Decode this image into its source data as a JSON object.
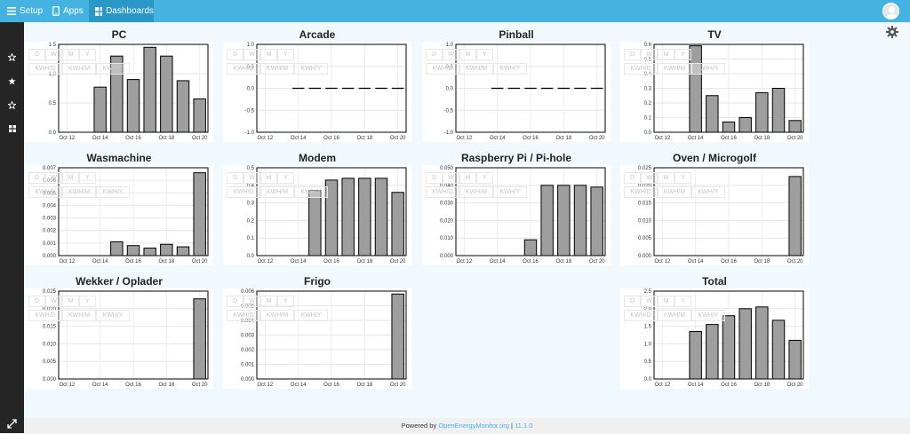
{
  "topbar": {
    "setup_label": "Setup",
    "apps_label": "Apps",
    "dashboards_label": "Dashboards"
  },
  "footer": {
    "powered_by": "Powered by",
    "link_text": "OpenEnergyMonitor.org",
    "separator": "|",
    "version": "11.1.0"
  },
  "overlay_buttons": {
    "row1": [
      "D",
      "W",
      "M",
      "Y"
    ],
    "row2": [
      "KWH/D",
      "KWH/M",
      "KWH/Y"
    ]
  },
  "colors": {
    "topbar": "#44b3e2",
    "topbar_active": "#2a98c6",
    "sidebar": "#252525",
    "bar_fill": "#9e9e9e"
  },
  "chart_data": [
    {
      "type": "bar",
      "title": "PC",
      "categories": [
        "Oct 12",
        "Oct 13",
        "Oct 14",
        "Oct 15",
        "Oct 16",
        "Oct 17",
        "Oct 18",
        "Oct 19",
        "Oct 20"
      ],
      "values": [
        0,
        0,
        0.77,
        1.3,
        0.9,
        1.45,
        1.3,
        0.88,
        0.57
      ],
      "ylim": [
        0,
        1.5
      ],
      "yticks": [
        "0.0",
        "0.5",
        "1.0",
        "1.5"
      ],
      "xticks": [
        "Oct 12",
        "Oct 14",
        "Oct 16",
        "Oct 18",
        "Oct 20"
      ]
    },
    {
      "type": "bar",
      "title": "Arcade",
      "categories": [
        "Oct 12",
        "Oct 13",
        "Oct 14",
        "Oct 15",
        "Oct 16",
        "Oct 17",
        "Oct 18",
        "Oct 19",
        "Oct 20"
      ],
      "values": [
        0,
        0,
        0,
        0,
        0,
        0,
        0,
        0,
        0
      ],
      "ylim": [
        -1,
        1
      ],
      "yticks": [
        "-1.0",
        "-0.5",
        "0.0",
        "0.5",
        "1.0"
      ],
      "xticks": [
        "Oct 12",
        "Oct 14",
        "Oct 16",
        "Oct 18",
        "Oct 20"
      ]
    },
    {
      "type": "bar",
      "title": "Pinball",
      "categories": [
        "Oct 12",
        "Oct 13",
        "Oct 14",
        "Oct 15",
        "Oct 16",
        "Oct 17",
        "Oct 18",
        "Oct 19",
        "Oct 20"
      ],
      "values": [
        0,
        0,
        0,
        0,
        0,
        0,
        0,
        0,
        0
      ],
      "ylim": [
        -1,
        1
      ],
      "yticks": [
        "-1.0",
        "-0.5",
        "0.0",
        "0.5",
        "1.0"
      ],
      "xticks": [
        "Oct 12",
        "Oct 14",
        "Oct 16",
        "Oct 18",
        "Oct 20"
      ]
    },
    {
      "type": "bar",
      "title": "TV",
      "categories": [
        "Oct 12",
        "Oct 13",
        "Oct 14",
        "Oct 15",
        "Oct 16",
        "Oct 17",
        "Oct 18",
        "Oct 19",
        "Oct 20"
      ],
      "values": [
        0,
        0,
        0.59,
        0.25,
        0.07,
        0.1,
        0.27,
        0.3,
        0.08
      ],
      "ylim": [
        0,
        0.6
      ],
      "yticks": [
        "0.0",
        "0.1",
        "0.2",
        "0.3",
        "0.4",
        "0.5",
        "0.6"
      ],
      "xticks": [
        "Oct 12",
        "Oct 14",
        "Oct 16",
        "Oct 18",
        "Oct 20"
      ]
    },
    {
      "type": "bar",
      "title": "Wasmachine",
      "categories": [
        "Oct 12",
        "Oct 13",
        "Oct 14",
        "Oct 15",
        "Oct 16",
        "Oct 17",
        "Oct 18",
        "Oct 19",
        "Oct 20"
      ],
      "values": [
        0,
        0,
        0,
        0.0011,
        0.0008,
        0.0006,
        0.0009,
        0.0007,
        0.0066
      ],
      "ylim": [
        0,
        0.007
      ],
      "yticks": [
        "0.000",
        "0.001",
        "0.002",
        "0.003",
        "0.004",
        "0.005",
        "0.006",
        "0.007"
      ],
      "xticks": [
        "Oct 12",
        "Oct 14",
        "Oct 16",
        "Oct 18",
        "Oct 20"
      ]
    },
    {
      "type": "bar",
      "title": "Modem",
      "categories": [
        "Oct 12",
        "Oct 13",
        "Oct 14",
        "Oct 15",
        "Oct 16",
        "Oct 17",
        "Oct 18",
        "Oct 19",
        "Oct 20"
      ],
      "values": [
        0,
        0,
        0,
        0.37,
        0.43,
        0.44,
        0.44,
        0.44,
        0.36
      ],
      "ylim": [
        0,
        0.5
      ],
      "yticks": [
        "0.0",
        "0.1",
        "0.2",
        "0.3",
        "0.4",
        "0.5"
      ],
      "xticks": [
        "Oct 12",
        "Oct 14",
        "Oct 16",
        "Oct 18",
        "Oct 20"
      ]
    },
    {
      "type": "bar",
      "title": "Raspberry Pi / Pi-hole",
      "categories": [
        "Oct 12",
        "Oct 13",
        "Oct 14",
        "Oct 15",
        "Oct 16",
        "Oct 17",
        "Oct 18",
        "Oct 19",
        "Oct 20"
      ],
      "values": [
        0,
        0,
        0,
        0,
        0.009,
        0.04,
        0.04,
        0.04,
        0.039
      ],
      "ylim": [
        0,
        0.05
      ],
      "yticks": [
        "0.000",
        "0.010",
        "0.020",
        "0.030",
        "0.040",
        "0.050"
      ],
      "xticks": [
        "Oct 12",
        "Oct 14",
        "Oct 16",
        "Oct 18",
        "Oct 20"
      ]
    },
    {
      "type": "bar",
      "title": "Oven / Microgolf",
      "categories": [
        "Oct 12",
        "Oct 13",
        "Oct 14",
        "Oct 15",
        "Oct 16",
        "Oct 17",
        "Oct 18",
        "Oct 19",
        "Oct 20"
      ],
      "values": [
        0,
        0,
        0,
        0,
        0,
        0,
        0,
        0,
        0.0225
      ],
      "ylim": [
        0,
        0.025
      ],
      "yticks": [
        "0.000",
        "0.005",
        "0.010",
        "0.015",
        "0.020",
        "0.025"
      ],
      "xticks": [
        "Oct 12",
        "Oct 14",
        "Oct 16",
        "Oct 18",
        "Oct 20"
      ]
    },
    {
      "type": "bar",
      "title": "Wekker / Oplader",
      "categories": [
        "Oct 12",
        "Oct 13",
        "Oct 14",
        "Oct 15",
        "Oct 16",
        "Oct 17",
        "Oct 18",
        "Oct 19",
        "Oct 20"
      ],
      "values": [
        0,
        0,
        0,
        0,
        0,
        0,
        0,
        0,
        0.0228
      ],
      "ylim": [
        0,
        0.025
      ],
      "yticks": [
        "0.000",
        "0.005",
        "0.010",
        "0.015",
        "0.020",
        "0.025"
      ],
      "xticks": [
        "Oct 12",
        "Oct 14",
        "Oct 16",
        "Oct 18",
        "Oct 20"
      ]
    },
    {
      "type": "bar",
      "title": "Frigo",
      "categories": [
        "Oct 12",
        "Oct 13",
        "Oct 14",
        "Oct 15",
        "Oct 16",
        "Oct 17",
        "Oct 18",
        "Oct 19",
        "Oct 20"
      ],
      "values": [
        0,
        0,
        0,
        0,
        0,
        0,
        0,
        0,
        0.0058
      ],
      "ylim": [
        0,
        0.006
      ],
      "yticks": [
        "0.000",
        "0.001",
        "0.002",
        "0.003",
        "0.004",
        "0.005",
        "0.006"
      ],
      "xticks": [
        "Oct 12",
        "Oct 14",
        "Oct 16",
        "Oct 18",
        "Oct 20"
      ]
    },
    {
      "type": "bar",
      "title": "Total",
      "categories": [
        "Oct 12",
        "Oct 13",
        "Oct 14",
        "Oct 15",
        "Oct 16",
        "Oct 17",
        "Oct 18",
        "Oct 19",
        "Oct 20"
      ],
      "values": [
        0,
        0,
        1.35,
        1.55,
        1.8,
        2.0,
        2.05,
        1.67,
        1.1
      ],
      "ylim": [
        0,
        2.5
      ],
      "yticks": [
        "0.0",
        "0.5",
        "1.0",
        "1.5",
        "2.0",
        "2.5"
      ],
      "xticks": [
        "Oct 12",
        "Oct 14",
        "Oct 16",
        "Oct 18",
        "Oct 20"
      ]
    }
  ]
}
